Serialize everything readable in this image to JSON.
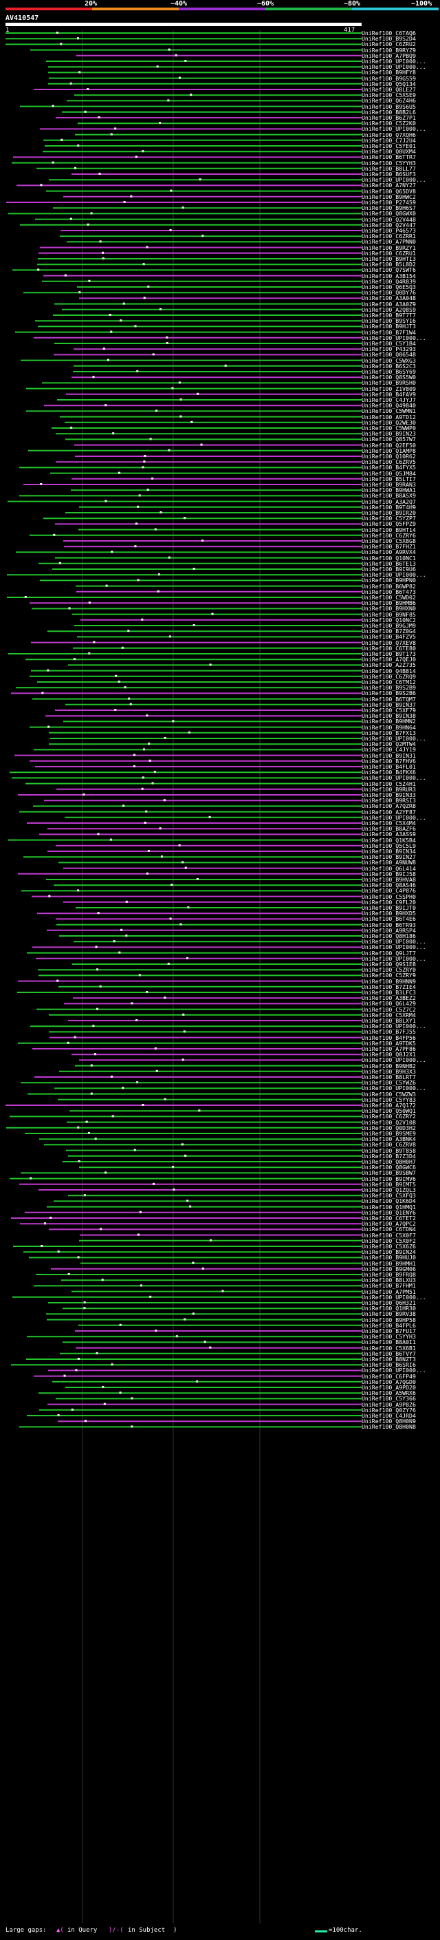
{
  "header": {
    "scale_labels": [
      "20%",
      "~40%",
      "~60%",
      "~80%",
      "~100%"
    ],
    "colors": [
      "#e8202a",
      "#f08a1e",
      "#9a2fd4",
      "#22b84a",
      "#2cc6d8"
    ]
  },
  "query": {
    "name": "AV410547",
    "start": "1",
    "end": "417"
  },
  "hits": [
    "UniRef100_C6TAQ6",
    "UniRef100_B9S2D4",
    "UniRef100_C6ZRU2",
    "UniRef100_B9RYZ9",
    "UniRef100_A7PBQ9",
    "UniRef100_UPI000...",
    "UniRef100_UPI000...",
    "UniRef100_B9HFY8",
    "UniRef100_B9GS59",
    "UniRef100_Q5Q134",
    "UniRef100_Q8LE27",
    "UniRef100_C5XSE9",
    "UniRef100_Q6Z4H6",
    "UniRef100_B9S6U5",
    "UniRef100_B8B2L6",
    "UniRef100_B6Z7P1",
    "UniRef100_C5Z2K0",
    "UniRef100_UPI000...",
    "UniRef100_Q7XQH6",
    "UniRef100_C7J2U4",
    "UniRef100_C5YE01",
    "UniRef100_Q0UXM4",
    "UniRef100_B6TTR7",
    "UniRef100_C5YYH3",
    "UniRef100_B8LL77",
    "UniRef100_B6SUF3",
    "UniRef100_UPI000...",
    "UniRef100_A7NY27",
    "UniRef100_Q65DV8",
    "UniRef100_B9HWC2",
    "UniRef100_P27459",
    "UniRef100_B9H6S7",
    "UniRef100_Q8GWX0",
    "UniRef100_Q2V448",
    "UniRef100_Q2V447",
    "UniRef100_P46573",
    "UniRef100_C6ZRR1",
    "UniRef100_A7PNN0",
    "UniRef100_B9RZY1",
    "UniRef100_C6ZRU1",
    "UniRef100_B9HTI3",
    "UniRef100_B5L8D2",
    "UniRef100_Q7SWT6",
    "UniRef100_A3B154",
    "UniRef100_Q4R839",
    "UniRef100_Q6E5Q3",
    "UniRef100_Q0DY76",
    "UniRef100_A3A048",
    "UniRef100_A3A0Z9",
    "UniRef100_A2Q8S9",
    "UniRef100_B9T7T7",
    "UniRef100_B9SY16",
    "UniRef100_B9HJT3",
    "UniRef100_B7F1W4",
    "UniRef100_UPI000...",
    "UniRef100_C5Y1B4",
    "UniRef100_P43293",
    "UniRef100_Q06548",
    "UniRef100_C5WXG3",
    "UniRef100_B6S2C3",
    "UniRef100_B6SY69",
    "UniRef100_Q8S5W0",
    "UniRef100_B9RSH0",
    "UniRef100_Z1V809",
    "UniRef100_B4FAV9",
    "UniRef100_C4JYJ7",
    "UniRef100_Q49840",
    "UniRef100_C5WMN1",
    "UniRef100_A9TD12",
    "UniRef100_Q2WE30",
    "UniRef100_C5WWP0",
    "UniRef100_B9IN23",
    "UniRef100_Q857W7",
    "UniRef100_Q2EF50",
    "UniRef100_Q1AMP8",
    "UniRef100_Q10R62",
    "UniRef100_C6ZRV5",
    "UniRef100_B4FYX5",
    "UniRef100_Q5JM84",
    "UniRef100_B5LTI7",
    "UniRef100_B9RAN3",
    "UniRef100_B9HWA1",
    "UniRef100_B8ASX9",
    "UniRef100_A3A2Q7",
    "UniRef100_B9T4H9",
    "UniRef100_B9IR20",
    "UniRef100_C5YZP7",
    "UniRef100_Q5FPZ9",
    "UniRef100_B9HT14",
    "UniRef100_C6ZRY6",
    "UniRef100_C5X8G8",
    "UniRef100_B7FHZ1",
    "UniRef100_A9RVX4",
    "UniRef100_Q10NC1",
    "UniRef100_B6TE13",
    "UniRef100_B9I9U6",
    "UniRef100_UPI000...",
    "UniRef100_B9HPN0",
    "UniRef100_B6WP82",
    "UniRef100_B6T473",
    "UniRef100_C5WD02",
    "UniRef100_B9HMB6",
    "UniRef100_B9HXN0",
    "UniRef100_B9NF85",
    "UniRef100_Q10NC2",
    "UniRef100_B9GJM9",
    "UniRef100_B7Z0G4",
    "UniRef100_B4FZV5",
    "UniRef100_Q7XEV8",
    "UniRef100_C6TE80",
    "UniRef100_B9T173",
    "UniRef100_A7QEJ0",
    "UniRef100_A2Z735",
    "UniRef100_Q4B814",
    "UniRef100_C6ZRQ9",
    "UniRef100_C6TM12",
    "UniRef100_B9S2B9",
    "UniRef100_B9S2B6",
    "UniRef100_B6TQM7",
    "UniRef100_B9IN37",
    "UniRef100_C5XF79",
    "UniRef100_B9IN38",
    "UniRef100_B9HMN2",
    "UniRef100_B9HN64",
    "UniRef100_B7FX13",
    "UniRef100_UPI000...",
    "UniRef100_Q2MTW4",
    "UniRef100_C4JY19",
    "UniRef100_B9IN31",
    "UniRef100_B7FHV6",
    "UniRef100_B4FL01",
    "UniRef100_B4FKX6",
    "UniRef100_UPI000...",
    "UniRef100_C5Z4H1",
    "UniRef100_B9RUR3",
    "UniRef100_B9IN33",
    "UniRef100_B9RSI3",
    "UniRef100_A7QZR8",
    "UniRef100_A2YF87",
    "UniRef100_UPI000...",
    "UniRef100_C5X4M4",
    "UniRef100_B8AZF6",
    "UniRef100_A3ASS9",
    "UniRef100_Q1K5B4",
    "UniRef100_Q5C5L9",
    "UniRef100_B9IN34",
    "UniRef100_B9IN27",
    "UniRef100_A9NUW8",
    "UniRef100_Q6L414",
    "UniRef100_B9IJ58",
    "UniRef100_B9HVA8",
    "UniRef100_Q8AS46",
    "UniRef100_C4P876",
    "UniRef100_C5SPH0",
    "UniRef100_C9FL20",
    "UniRef100_B9IJT0",
    "UniRef100_B9HXD5",
    "UniRef100_B6T4E6",
    "UniRef100_B6TR93",
    "UniRef100_A9RSP4",
    "UniRef100_Q8H186",
    "UniRef100_UPI000...",
    "UniRef100_UPI000...",
    "UniRef100_Q9LJT7",
    "UniRef100_UPI000...",
    "UniRef100_Q9S1E8",
    "UniRef100_C5ZRY0",
    "UniRef100_C5ZRY9",
    "UniRef100_B9HNN9",
    "UniRef100_B7ZIE4",
    "UniRef100_B3LFC3",
    "UniRef100_A3BEZ2",
    "UniRef100_Q6L429",
    "UniRef100_C5Z7C2",
    "UniRef100_C5XRM4",
    "UniRef100_B8LXY1",
    "UniRef100_UPI000...",
    "UniRef100_B7FJ55",
    "UniRef100_B4FP56",
    "UniRef100_A9TDK5",
    "UniRef100_A7PF86",
    "UniRef100_Q0J2X1",
    "UniRef100_UPI000...",
    "UniRef100_B9NHB2",
    "UniRef100_B9H3X3",
    "UniRef100_B8LRT7",
    "UniRef100_C5YWZ6",
    "UniRef100_UPI000...",
    "UniRef100_C5WZW3",
    "UniRef100_C5YY83",
    "UniRef100_A7Q172",
    "UniRef100_Q50WQ1",
    "UniRef100_C6ZRY2",
    "UniRef100_Q2V108",
    "UniRef100_Q0D3H2",
    "UniRef100_B9SME9",
    "UniRef100_A3BNK4",
    "UniRef100_C6ZRV8",
    "UniRef100_B9T858",
    "UniRef100_B7Z3D4",
    "UniRef100_Q8H0H7",
    "UniRef100_Q8GWC6",
    "UniRef100_B9SBW7",
    "UniRef100_B9IMV6",
    "UniRef100_B9IMT5",
    "UniRef100_Q1ZQL3",
    "UniRef100_C5XFQ3",
    "UniRef100_Q1K6D4",
    "UniRef100_Q1HMQ1",
    "UniRef100_Q1ENY6",
    "UniRef100_C6TET2",
    "UniRef100_A7QPC2",
    "UniRef100_C6TDN4",
    "UniRef100_C5X0F7",
    "UniRef100_C5X0F2",
    "UniRef100_C5X6Z6",
    "UniRef100_B9IN24",
    "UniRef100_B9HUJ0",
    "UniRef100_B9HMH1",
    "UniRef100_B9GM06",
    "UniRef100_B9FRQ8",
    "UniRef100_B8LXU3",
    "UniRef100_B7FHM1",
    "UniRef100_A7PM51",
    "UniRef100_UPI000...",
    "UniRef100_Q6H321",
    "UniRef100_Q1HR30",
    "UniRef100_B9RV38",
    "UniRef100_B9HP58",
    "UniRef100_B4FPL6",
    "UniRef100_B7FU17",
    "UniRef100_C5YYH3",
    "UniRef100_B8A0I1",
    "UniRef100_C5X6B1",
    "UniRef100_B6TVY7",
    "UniRef100_B8NZT3",
    "UniRef100_B6SRI6",
    "UniRef100_UPI000...",
    "UniRef100_C6FP49",
    "UniRef100_A7QGD0",
    "UniRef100_A9PD20",
    "UniRef100_A5WRX6",
    "UniRef100_C5Y366",
    "UniRef100_A9P8Z6",
    "UniRef100_Q0ZY76",
    "UniRef100_C4JRD4",
    "UniRef100_Q8H0N9",
    "UniRef100_Q8H0N8"
  ],
  "footer": {
    "large_gaps": "Large gaps:",
    "query_gap": "in Query",
    "subject_gap": "in Subject",
    "legend": "=100char."
  }
}
